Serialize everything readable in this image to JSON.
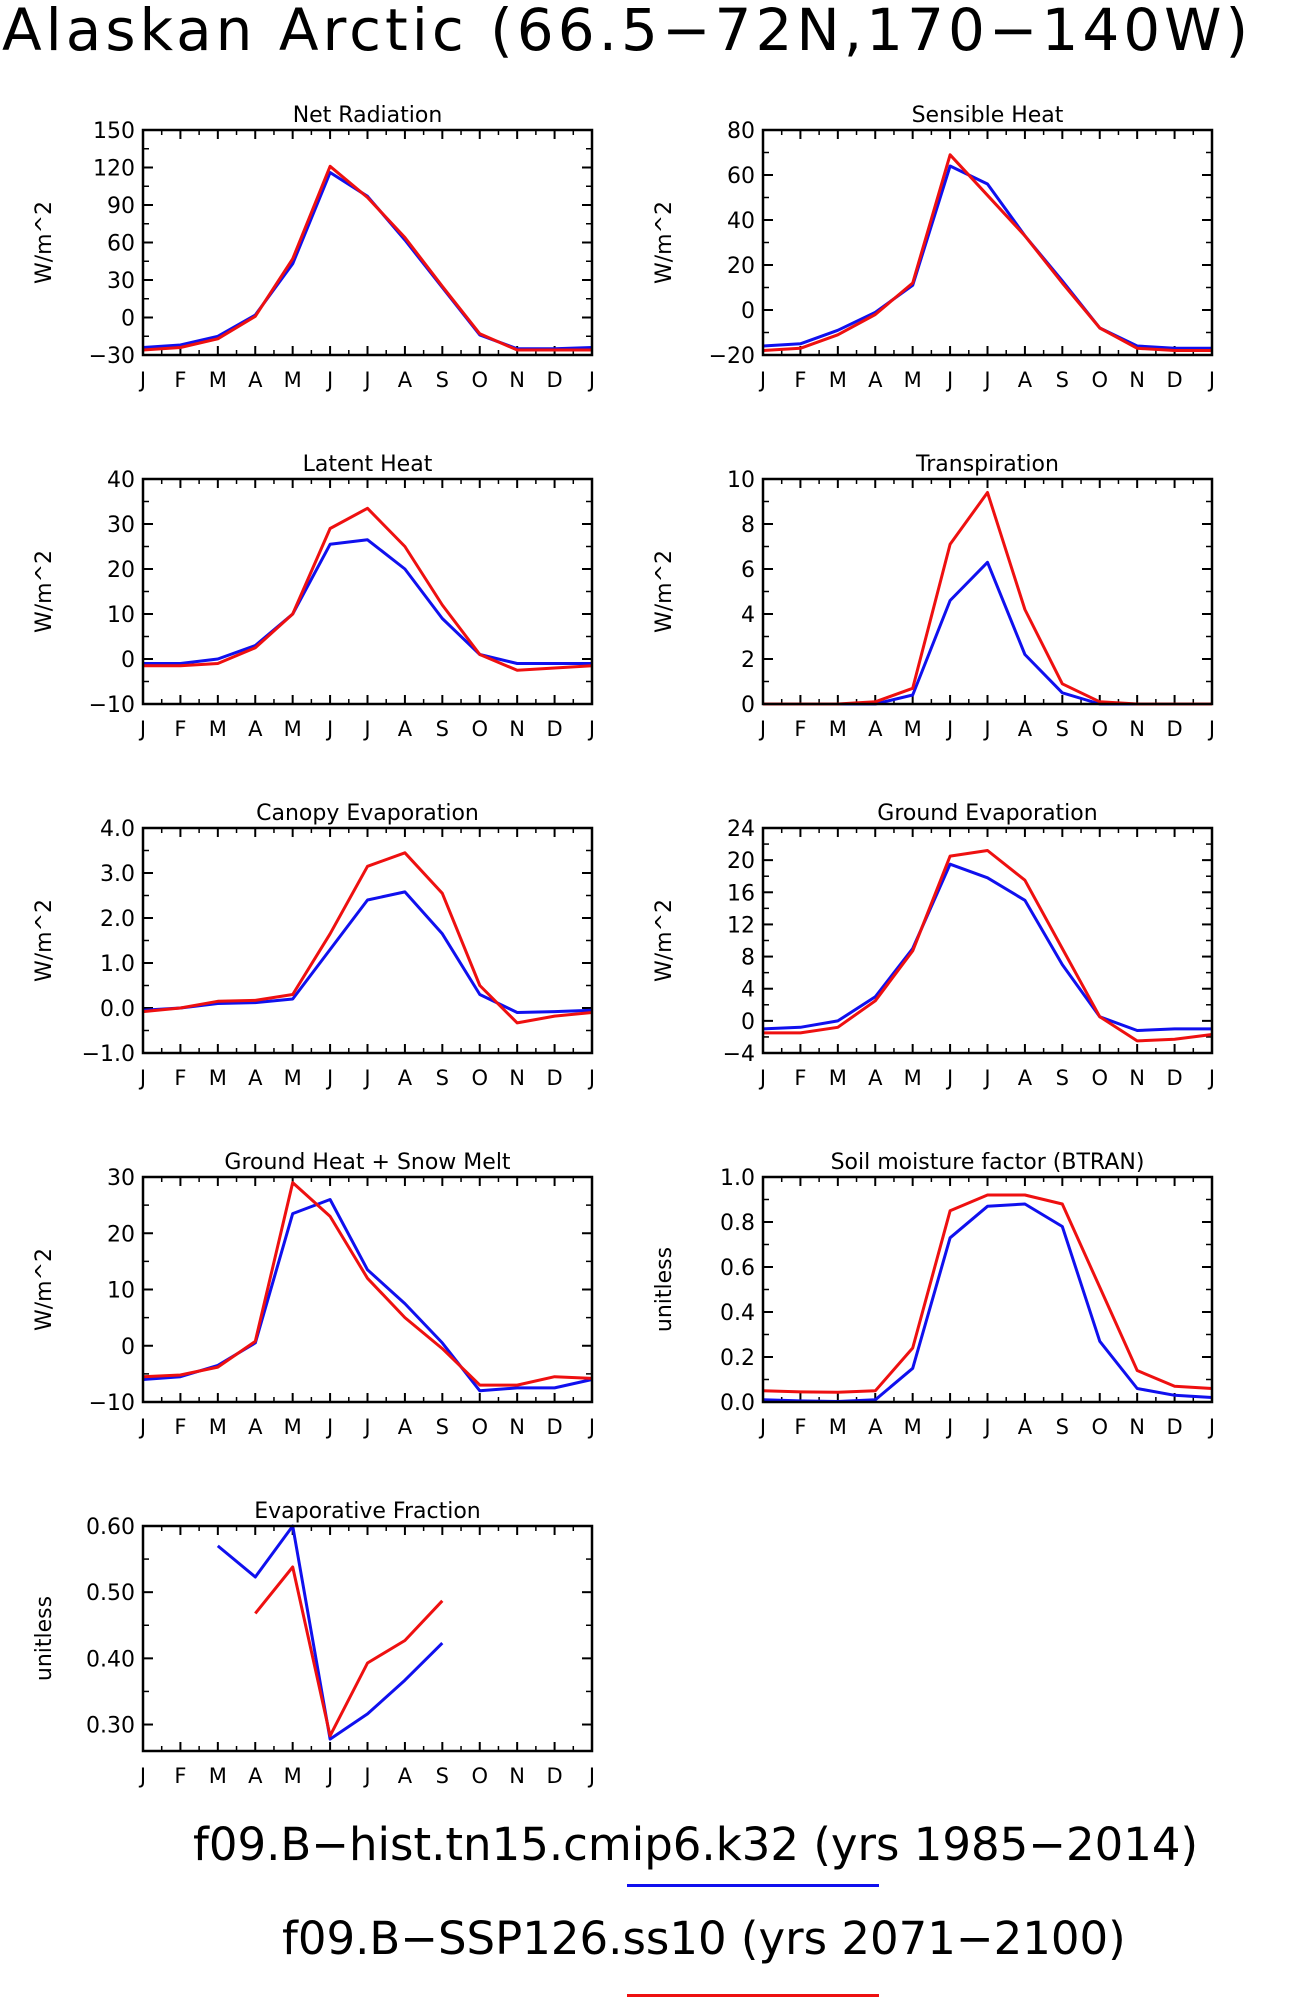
{
  "figure_title": "Alaskan Arctic (66.5−72N,170−140W)",
  "months": [
    "J",
    "F",
    "M",
    "A",
    "M",
    "J",
    "J",
    "A",
    "S",
    "O",
    "N",
    "D",
    "J"
  ],
  "colors": {
    "hist": "#1010ee",
    "ssp": "#ee1010",
    "axis": "#000000"
  },
  "legend": [
    {
      "id": "hist",
      "text": "f09.B−hist.tn15.cmip6.k32 (yrs 1985−2014)"
    },
    {
      "id": "ssp",
      "text": "f09.B−SSP126.ss10 (yrs 2071−2100)"
    }
  ],
  "chart_data": [
    {
      "type": "line",
      "title": "Net Radiation",
      "ylabel": "W/m^2",
      "ylim": [
        -30,
        150
      ],
      "yticks": [
        -30,
        0,
        30,
        60,
        90,
        120,
        150
      ],
      "ytick_labels": [
        "−30",
        "0",
        "30",
        "60",
        "90",
        "120",
        "150"
      ],
      "series": [
        {
          "id": "hist",
          "values": [
            -24,
            -22,
            -15,
            2,
            43,
            116,
            97,
            62,
            24,
            -14,
            -25,
            -25,
            -24
          ]
        },
        {
          "id": "ssp",
          "values": [
            -26,
            -24,
            -17,
            1,
            47,
            121,
            96,
            64,
            25,
            -13,
            -26,
            -26,
            -26
          ]
        }
      ]
    },
    {
      "type": "line",
      "title": "Sensible Heat",
      "ylabel": "W/m^2",
      "ylim": [
        -20,
        80
      ],
      "yticks": [
        -20,
        0,
        20,
        40,
        60,
        80
      ],
      "ytick_labels": [
        "−20",
        "0",
        "20",
        "40",
        "60",
        "80"
      ],
      "series": [
        {
          "id": "hist",
          "values": [
            -16,
            -15,
            -9,
            -1,
            11,
            64,
            56,
            33,
            13,
            -8,
            -16,
            -17,
            -17
          ]
        },
        {
          "id": "ssp",
          "values": [
            -18,
            -17,
            -11,
            -2,
            12,
            69,
            51,
            33,
            12,
            -8,
            -17,
            -18,
            -18
          ]
        }
      ]
    },
    {
      "type": "line",
      "title": "Latent Heat",
      "ylabel": "W/m^2",
      "ylim": [
        -10,
        40
      ],
      "yticks": [
        -10,
        0,
        10,
        20,
        30,
        40
      ],
      "ytick_labels": [
        "−10",
        "0",
        "10",
        "20",
        "30",
        "40"
      ],
      "series": [
        {
          "id": "hist",
          "values": [
            -1,
            -1,
            0,
            3,
            10,
            25.5,
            26.5,
            20,
            9,
            1,
            -1,
            -1,
            -1
          ]
        },
        {
          "id": "ssp",
          "values": [
            -1.5,
            -1.5,
            -1,
            2.5,
            10,
            29,
            33.5,
            25,
            12,
            1,
            -2.5,
            -2,
            -1.5
          ]
        }
      ]
    },
    {
      "type": "line",
      "title": "Transpiration",
      "ylabel": "W/m^2",
      "ylim": [
        0,
        10
      ],
      "yticks": [
        0,
        2,
        4,
        6,
        8,
        10
      ],
      "ytick_labels": [
        "0",
        "2",
        "4",
        "6",
        "8",
        "10"
      ],
      "series": [
        {
          "id": "hist",
          "values": [
            0,
            0,
            0,
            0,
            0.4,
            4.6,
            6.3,
            2.2,
            0.5,
            0,
            0,
            0,
            0
          ]
        },
        {
          "id": "ssp",
          "values": [
            0,
            0,
            0,
            0.1,
            0.7,
            7.1,
            9.4,
            4.2,
            0.9,
            0.1,
            0,
            0,
            0
          ]
        }
      ]
    },
    {
      "type": "line",
      "title": "Canopy Evaporation",
      "ylabel": "W/m^2",
      "ylim": [
        -1,
        4
      ],
      "yticks": [
        -1,
        0,
        1,
        2,
        3,
        4
      ],
      "ytick_labels": [
        "−1.0",
        "0.0",
        "1.0",
        "2.0",
        "3.0",
        "4.0"
      ],
      "series": [
        {
          "id": "hist",
          "values": [
            -0.05,
            0.0,
            0.1,
            0.12,
            0.2,
            1.3,
            2.4,
            2.58,
            1.65,
            0.3,
            -0.1,
            -0.08,
            -0.05
          ]
        },
        {
          "id": "ssp",
          "values": [
            -0.08,
            0.0,
            0.15,
            0.17,
            0.3,
            1.65,
            3.15,
            3.45,
            2.55,
            0.5,
            -0.33,
            -0.18,
            -0.1
          ]
        }
      ]
    },
    {
      "type": "line",
      "title": "Ground Evaporation",
      "ylabel": "W/m^2",
      "ylim": [
        -4,
        24
      ],
      "yticks": [
        -4,
        0,
        4,
        8,
        12,
        16,
        20,
        24
      ],
      "ytick_labels": [
        "−4",
        "0",
        "4",
        "8",
        "12",
        "16",
        "20",
        "24"
      ],
      "series": [
        {
          "id": "hist",
          "values": [
            -1,
            -0.8,
            0,
            3,
            9,
            19.5,
            17.8,
            15,
            7,
            0.5,
            -1.2,
            -1,
            -1
          ]
        },
        {
          "id": "ssp",
          "values": [
            -1.5,
            -1.5,
            -0.8,
            2.5,
            8.7,
            20.5,
            21.2,
            17.5,
            9,
            0.5,
            -2.5,
            -2.3,
            -1.7
          ]
        }
      ]
    },
    {
      "type": "line",
      "title": "Ground Heat + Snow Melt",
      "ylabel": "W/m^2",
      "ylim": [
        -10,
        30
      ],
      "yticks": [
        -10,
        0,
        10,
        20,
        30
      ],
      "ytick_labels": [
        "−10",
        "0",
        "10",
        "20",
        "30"
      ],
      "series": [
        {
          "id": "hist",
          "values": [
            -6,
            -5.5,
            -3.5,
            0.5,
            23.5,
            26,
            13.5,
            7.5,
            0.5,
            -8,
            -7.5,
            -7.5,
            -6
          ]
        },
        {
          "id": "ssp",
          "values": [
            -5.5,
            -5.2,
            -3.8,
            0.8,
            29,
            23,
            12,
            5,
            -0.5,
            -7,
            -7,
            -5.5,
            -5.8
          ]
        }
      ]
    },
    {
      "type": "line",
      "title": "Soil moisture factor (BTRAN)",
      "ylabel": "unitless",
      "ylim": [
        0,
        1
      ],
      "yticks": [
        0,
        0.2,
        0.4,
        0.6,
        0.8,
        1.0
      ],
      "ytick_labels": [
        "0.0",
        "0.2",
        "0.4",
        "0.6",
        "0.8",
        "1.0"
      ],
      "series": [
        {
          "id": "hist",
          "values": [
            0.01,
            0.005,
            0.002,
            0.01,
            0.15,
            0.73,
            0.87,
            0.88,
            0.78,
            0.27,
            0.06,
            0.03,
            0.02
          ]
        },
        {
          "id": "ssp",
          "values": [
            0.05,
            0.045,
            0.043,
            0.05,
            0.24,
            0.85,
            0.92,
            0.92,
            0.88,
            0.51,
            0.14,
            0.07,
            0.06
          ]
        }
      ]
    },
    {
      "type": "line",
      "title": "Evaporative Fraction",
      "ylabel": "unitless",
      "ylim": [
        0.26,
        0.6
      ],
      "yticks": [
        0.3,
        0.4,
        0.5,
        0.6
      ],
      "ytick_labels": [
        "0.30",
        "0.40",
        "0.50",
        "0.60"
      ],
      "series": [
        {
          "id": "hist",
          "values": [
            null,
            null,
            0.57,
            0.523,
            0.6,
            0.278,
            0.316,
            0.367,
            0.423,
            null,
            null,
            null,
            null
          ]
        },
        {
          "id": "ssp",
          "values": [
            null,
            null,
            null,
            0.468,
            0.538,
            0.283,
            0.393,
            0.427,
            0.487,
            null,
            null,
            null,
            null
          ]
        }
      ]
    }
  ]
}
